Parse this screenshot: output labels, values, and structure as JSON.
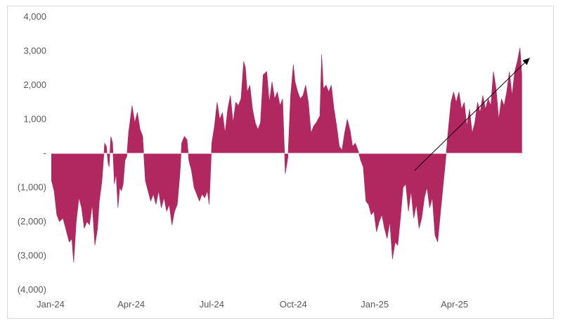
{
  "chart_data": {
    "type": "area",
    "title": "",
    "xlabel": "",
    "ylabel": "",
    "ylim": [
      -4000,
      4000
    ],
    "y_ticks": [
      {
        "value": 4000,
        "label": "4,000"
      },
      {
        "value": 3000,
        "label": "3,000"
      },
      {
        "value": 2000,
        "label": "2,000"
      },
      {
        "value": 1000,
        "label": "1,000"
      },
      {
        "value": 0,
        "label": "-"
      },
      {
        "value": -1000,
        "label": "(1,000)"
      },
      {
        "value": -2000,
        "label": "(2,000)"
      },
      {
        "value": -3000,
        "label": "(3,000)"
      },
      {
        "value": -4000,
        "label": "(4,000)"
      }
    ],
    "x_ticks": [
      {
        "value": "2024-01-01",
        "label": "Jan-24"
      },
      {
        "value": "2024-04-01",
        "label": "Apr-24"
      },
      {
        "value": "2024-07-01",
        "label": "Jul-24"
      },
      {
        "value": "2024-10-01",
        "label": "Oct-24"
      },
      {
        "value": "2025-01-01",
        "label": "Jan-25"
      },
      {
        "value": "2025-04-01",
        "label": "Apr-25"
      }
    ],
    "xlim": [
      "2024-01-01",
      "2025-06-30"
    ],
    "grid": false,
    "legend": "none",
    "color": "#b0285f",
    "arrow_annotation": {
      "from": {
        "x": "2025-02-15",
        "y": -500
      },
      "to": {
        "x": "2025-06-25",
        "y": 2800
      }
    },
    "series": [
      {
        "points": [
          [
            "2024-01-02",
            -800
          ],
          [
            "2024-01-05",
            -1100
          ],
          [
            "2024-01-08",
            -1800
          ],
          [
            "2024-01-11",
            -2000
          ],
          [
            "2024-01-15",
            -1900
          ],
          [
            "2024-01-18",
            -2200
          ],
          [
            "2024-01-22",
            -2600
          ],
          [
            "2024-01-25",
            -2500
          ],
          [
            "2024-01-27",
            -3200
          ],
          [
            "2024-01-30",
            -2000
          ],
          [
            "2024-02-02",
            -1300
          ],
          [
            "2024-02-05",
            -1600
          ],
          [
            "2024-02-08",
            -2200
          ],
          [
            "2024-02-11",
            -2000
          ],
          [
            "2024-02-14",
            -2100
          ],
          [
            "2024-02-17",
            -1500
          ],
          [
            "2024-02-20",
            -2700
          ],
          [
            "2024-02-23",
            -2200
          ],
          [
            "2024-02-25",
            -1400
          ],
          [
            "2024-02-28",
            -800
          ],
          [
            "2024-03-02",
            300
          ],
          [
            "2024-03-04",
            200
          ],
          [
            "2024-03-06",
            -300
          ],
          [
            "2024-03-07",
            -400
          ],
          [
            "2024-03-09",
            500
          ],
          [
            "2024-03-11",
            300
          ],
          [
            "2024-03-13",
            -900
          ],
          [
            "2024-03-15",
            -600
          ],
          [
            "2024-03-17",
            -1600
          ],
          [
            "2024-03-19",
            -1000
          ],
          [
            "2024-03-21",
            -1100
          ],
          [
            "2024-03-23",
            -900
          ],
          [
            "2024-03-25",
            -200
          ],
          [
            "2024-03-27",
            -100
          ],
          [
            "2024-03-29",
            600
          ],
          [
            "2024-03-31",
            1000
          ],
          [
            "2024-04-02",
            1400
          ],
          [
            "2024-04-05",
            900
          ],
          [
            "2024-04-08",
            1200
          ],
          [
            "2024-04-11",
            700
          ],
          [
            "2024-04-14",
            500
          ],
          [
            "2024-04-17",
            -800
          ],
          [
            "2024-04-20",
            -1100
          ],
          [
            "2024-04-23",
            -1400
          ],
          [
            "2024-04-26",
            -1200
          ],
          [
            "2024-04-29",
            -1500
          ],
          [
            "2024-05-02",
            -1100
          ],
          [
            "2024-05-05",
            -1600
          ],
          [
            "2024-05-08",
            -1300
          ],
          [
            "2024-05-11",
            -1700
          ],
          [
            "2024-05-14",
            -1500
          ],
          [
            "2024-05-17",
            -2100
          ],
          [
            "2024-05-20",
            -1700
          ],
          [
            "2024-05-23",
            -1500
          ],
          [
            "2024-05-26",
            -600
          ],
          [
            "2024-05-28",
            300
          ],
          [
            "2024-05-31",
            500
          ],
          [
            "2024-06-03",
            400
          ],
          [
            "2024-06-05",
            -200
          ],
          [
            "2024-06-08",
            -500
          ],
          [
            "2024-06-11",
            -1000
          ],
          [
            "2024-06-14",
            -1200
          ],
          [
            "2024-06-17",
            -1400
          ],
          [
            "2024-06-20",
            -1200
          ],
          [
            "2024-06-23",
            -1300
          ],
          [
            "2024-06-26",
            -1100
          ],
          [
            "2024-06-28",
            -1500
          ],
          [
            "2024-07-01",
            300
          ],
          [
            "2024-07-04",
            800
          ],
          [
            "2024-07-07",
            1500
          ],
          [
            "2024-07-10",
            1000
          ],
          [
            "2024-07-13",
            1200
          ],
          [
            "2024-07-16",
            600
          ],
          [
            "2024-07-19",
            1300
          ],
          [
            "2024-07-22",
            1700
          ],
          [
            "2024-07-25",
            900
          ],
          [
            "2024-07-28",
            1500
          ],
          [
            "2024-07-31",
            1400
          ],
          [
            "2024-08-03",
            1600
          ],
          [
            "2024-08-06",
            2700
          ],
          [
            "2024-08-08",
            2500
          ],
          [
            "2024-08-10",
            1800
          ],
          [
            "2024-08-13",
            2000
          ],
          [
            "2024-08-16",
            1300
          ],
          [
            "2024-08-19",
            900
          ],
          [
            "2024-08-22",
            700
          ],
          [
            "2024-08-25",
            900
          ],
          [
            "2024-08-28",
            2300
          ],
          [
            "2024-09-01",
            2400
          ],
          [
            "2024-09-04",
            1500
          ],
          [
            "2024-09-07",
            2100
          ],
          [
            "2024-09-10",
            1600
          ],
          [
            "2024-09-13",
            1800
          ],
          [
            "2024-09-16",
            1400
          ],
          [
            "2024-09-19",
            1600
          ],
          [
            "2024-09-22",
            -600
          ],
          [
            "2024-09-25",
            -100
          ],
          [
            "2024-09-28",
            1700
          ],
          [
            "2024-10-01",
            2600
          ],
          [
            "2024-10-03",
            2100
          ],
          [
            "2024-10-06",
            1800
          ],
          [
            "2024-10-09",
            1600
          ],
          [
            "2024-10-12",
            1700
          ],
          [
            "2024-10-15",
            2000
          ],
          [
            "2024-10-18",
            1500
          ],
          [
            "2024-10-21",
            600
          ],
          [
            "2024-10-24",
            800
          ],
          [
            "2024-10-27",
            900
          ],
          [
            "2024-10-31",
            1100
          ],
          [
            "2024-11-02",
            2900
          ],
          [
            "2024-11-04",
            1900
          ],
          [
            "2024-11-07",
            2000
          ],
          [
            "2024-11-10",
            1800
          ],
          [
            "2024-11-13",
            2000
          ],
          [
            "2024-11-16",
            1300
          ],
          [
            "2024-11-19",
            800
          ],
          [
            "2024-11-22",
            200
          ],
          [
            "2024-11-25",
            100
          ],
          [
            "2024-11-28",
            600
          ],
          [
            "2024-12-01",
            1000
          ],
          [
            "2024-12-04",
            700
          ],
          [
            "2024-12-07",
            200
          ],
          [
            "2024-12-10",
            300
          ],
          [
            "2024-12-13",
            100
          ],
          [
            "2024-12-16",
            -200
          ],
          [
            "2024-12-19",
            -400
          ],
          [
            "2024-12-22",
            -1400
          ],
          [
            "2024-12-25",
            -1500
          ],
          [
            "2024-12-28",
            -1800
          ],
          [
            "2024-12-31",
            -1700
          ],
          [
            "2025-01-03",
            -2300
          ],
          [
            "2025-01-06",
            -2000
          ],
          [
            "2025-01-09",
            -1800
          ],
          [
            "2025-01-12",
            -2200
          ],
          [
            "2025-01-15",
            -2500
          ],
          [
            "2025-01-18",
            -2000
          ],
          [
            "2025-01-21",
            -3100
          ],
          [
            "2025-01-24",
            -2600
          ],
          [
            "2025-01-27",
            -2700
          ],
          [
            "2025-01-30",
            -1900
          ],
          [
            "2025-02-02",
            -1000
          ],
          [
            "2025-02-05",
            -900
          ],
          [
            "2025-02-08",
            -1700
          ],
          [
            "2025-02-11",
            -1100
          ],
          [
            "2025-02-14",
            -1900
          ],
          [
            "2025-02-17",
            -1500
          ],
          [
            "2025-02-20",
            -2200
          ],
          [
            "2025-02-23",
            -1900
          ],
          [
            "2025-02-26",
            -1300
          ],
          [
            "2025-03-01",
            -1000
          ],
          [
            "2025-03-04",
            -1600
          ],
          [
            "2025-03-07",
            -1300
          ],
          [
            "2025-03-10",
            -2400
          ],
          [
            "2025-03-13",
            -2600
          ],
          [
            "2025-03-16",
            -1800
          ],
          [
            "2025-03-19",
            -1000
          ],
          [
            "2025-03-22",
            -200
          ],
          [
            "2025-03-25",
            700
          ],
          [
            "2025-03-28",
            1500
          ],
          [
            "2025-03-31",
            1800
          ],
          [
            "2025-04-03",
            1500
          ],
          [
            "2025-04-06",
            1800
          ],
          [
            "2025-04-09",
            1300
          ],
          [
            "2025-04-12",
            1500
          ],
          [
            "2025-04-15",
            800
          ],
          [
            "2025-04-18",
            1300
          ],
          [
            "2025-04-21",
            600
          ],
          [
            "2025-04-24",
            900
          ],
          [
            "2025-04-27",
            1500
          ],
          [
            "2025-04-30",
            1200
          ],
          [
            "2025-05-03",
            1700
          ],
          [
            "2025-05-06",
            1300
          ],
          [
            "2025-05-09",
            1600
          ],
          [
            "2025-05-12",
            1400
          ],
          [
            "2025-05-15",
            2400
          ],
          [
            "2025-05-18",
            1900
          ],
          [
            "2025-05-21",
            1000
          ],
          [
            "2025-05-24",
            1600
          ],
          [
            "2025-05-27",
            1400
          ],
          [
            "2025-05-30",
            1800
          ],
          [
            "2025-06-02",
            2400
          ],
          [
            "2025-06-05",
            1700
          ],
          [
            "2025-06-08",
            2400
          ],
          [
            "2025-06-11",
            2700
          ],
          [
            "2025-06-14",
            3100
          ],
          [
            "2025-06-16",
            2300
          ]
        ]
      }
    ]
  }
}
